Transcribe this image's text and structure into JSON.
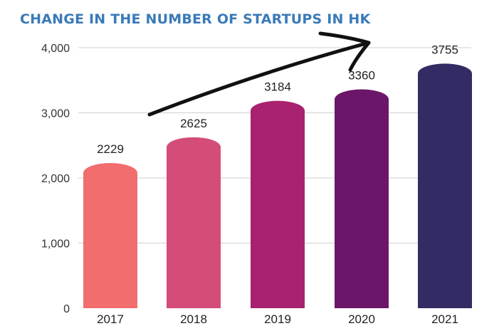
{
  "chart_data": {
    "type": "bar",
    "title": "CHANGE IN THE NUMBER OF STARTUPS IN HK",
    "categories": [
      "2017",
      "2018",
      "2019",
      "2020",
      "2021"
    ],
    "values": [
      2229,
      2625,
      3184,
      3360,
      3755
    ],
    "data_labels": [
      "2229",
      "2625",
      "3184",
      "3360",
      "3755"
    ],
    "yticks": [
      "0",
      "1,000",
      "2,000",
      "3,000",
      "4,000"
    ],
    "ytick_values": [
      0,
      1000,
      2000,
      3000,
      4000
    ],
    "ylim": [
      0,
      4000
    ],
    "grid": true,
    "legend": "none",
    "bar_colors": [
      "#f26d6d",
      "#d44c78",
      "#a8226f",
      "#6b1668",
      "#332b63"
    ],
    "title_color": "#3a7ab8",
    "annotation": "hand-drawn upward trend arrow"
  }
}
